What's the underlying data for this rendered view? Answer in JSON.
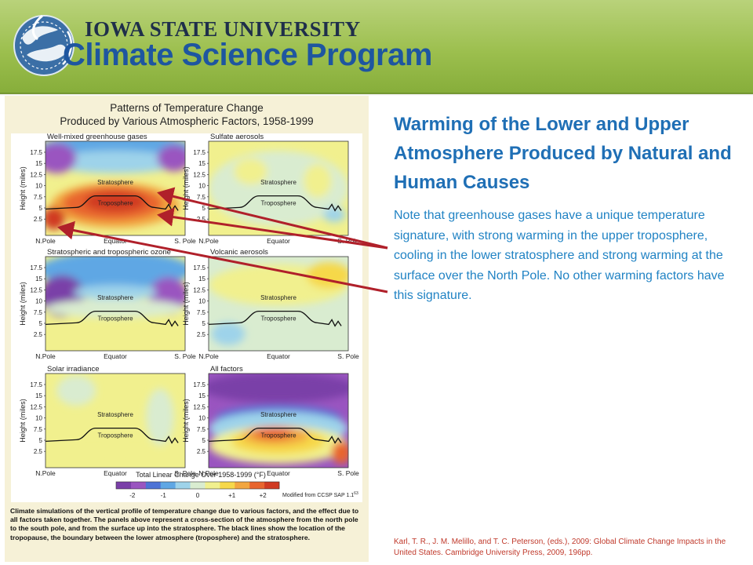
{
  "header": {
    "university": "IOWA STATE UNIVERSITY",
    "program": "Climate Science Program"
  },
  "figure": {
    "title_line1": "Patterns of Temperature Change",
    "title_line2": "Produced by Various Atmospheric Factors, 1958-1999",
    "ylabel": "Height (miles)",
    "y_ticks": [
      "17.5",
      "15",
      "12.5",
      "10",
      "7.5",
      "5",
      "2.5"
    ],
    "x_labels": [
      "N.Pole",
      "Equator",
      "S. Pole"
    ],
    "layer_labels": [
      "Stratosphere",
      "Troposphere"
    ],
    "panels": [
      {
        "title": "Well-mixed greenhouse gases"
      },
      {
        "title": "Sulfate aerosols"
      },
      {
        "title": "Stratospheric and tropospheric ozone"
      },
      {
        "title": "Volcanic aerosols"
      },
      {
        "title": "Solar irradiance"
      },
      {
        "title": "All factors"
      }
    ],
    "colorbar": {
      "title": "Total Linear Change Over 1958-1999 (°F)",
      "ticks": [
        "-2",
        "-1",
        "0",
        "+1",
        "+2"
      ],
      "source": "Modified from CCSP SAP 1.1",
      "source_sup": "63",
      "colors": [
        "#7a3fa8",
        "#9a55c0",
        "#4d73d6",
        "#5fa7e4",
        "#9ed3ea",
        "#d9ecd0",
        "#f1f08e",
        "#f6d84a",
        "#f2a640",
        "#e8652e",
        "#d03a22"
      ]
    },
    "caption": "Climate simulations of the vertical profile of temperature change due to various factors, and the effect due to all factors taken together. The panels above represent a cross-section of the atmosphere from the north pole to the south pole, and from the surface up into the stratosphere. The black lines show the location of the tropopause, the boundary between the lower atmosphere (troposphere) and the stratosphere."
  },
  "slide": {
    "title": "Warming of the Lower and Upper Atmosphere Produced by Natural and Human Causes",
    "body": "Note that greenhouse gases have a unique temperature signature, with strong warming in the upper troposphere, cooling in the lower stratosphere and strong warming at the surface over the North Pole. No other warming factors have this signature.",
    "citation": "Karl, T. R., J. M. Melillo, and T. C. Peterson, (eds.), 2009: Global Climate Change Impacts in the United States. Cambridge University Press, 2009, 196pp."
  },
  "colors": {
    "title": "#1f6fb5",
    "body": "#2183c4",
    "citation": "#c0392b",
    "arrow": "#b0202a",
    "header_green": "#9cbf4e"
  }
}
